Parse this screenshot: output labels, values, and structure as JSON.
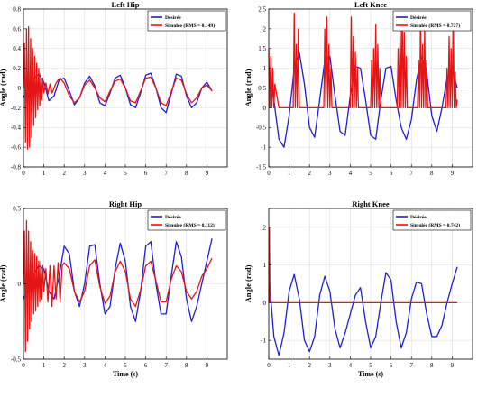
{
  "chart_data": [
    {
      "type": "line",
      "title": "Left Hip",
      "xlabel": "",
      "ylabel": "Angle (rad)",
      "xlim": [
        0,
        10
      ],
      "ylim": [
        -0.8,
        0.8
      ],
      "xticks": [
        0,
        1,
        2,
        3,
        4,
        5,
        6,
        7,
        8,
        9
      ],
      "yticks": [
        -0.8,
        -0.6,
        -0.4,
        -0.2,
        0,
        0.2,
        0.4,
        0.6,
        0.8
      ],
      "yticklabels": [
        "-0.8",
        "-0.6",
        "-0.4",
        "-0.2",
        "0",
        "0.2",
        "0.4",
        "0.6",
        "0.8"
      ],
      "grid": true,
      "legend_position": "top-right",
      "series": [
        {
          "name": "Désirée",
          "color": "#1f1fd2",
          "x": [
            0,
            0.25,
            0.5,
            0.75,
            1.0,
            1.25,
            1.5,
            1.75,
            2.0,
            2.25,
            2.5,
            2.75,
            3.0,
            3.25,
            3.5,
            3.75,
            4.0,
            4.25,
            4.5,
            4.75,
            5.0,
            5.25,
            5.5,
            5.75,
            6.0,
            6.25,
            6.5,
            6.75,
            7.0,
            7.25,
            7.5,
            7.75,
            8.0,
            8.25,
            8.5,
            8.75,
            9.0,
            9.25
          ],
          "y": [
            -0.1,
            0.0,
            0.1,
            0.14,
            0.06,
            -0.13,
            -0.08,
            0.08,
            0.1,
            -0.03,
            -0.17,
            -0.1,
            0.05,
            0.12,
            0.02,
            -0.15,
            -0.18,
            -0.05,
            0.1,
            0.13,
            0.0,
            -0.17,
            -0.2,
            -0.05,
            0.13,
            0.15,
            0.0,
            -0.2,
            -0.25,
            -0.06,
            0.14,
            0.12,
            -0.08,
            -0.2,
            -0.15,
            0.0,
            0.06,
            -0.03
          ]
        },
        {
          "name": "Simulée (RMS = 0.149)",
          "color": "#e61515",
          "x": [
            0,
            0.05,
            0.1,
            0.15,
            0.2,
            0.25,
            0.3,
            0.35,
            0.4,
            0.45,
            0.5,
            0.55,
            0.6,
            0.65,
            0.7,
            0.75,
            0.8,
            0.85,
            0.9,
            0.95,
            1.0,
            1.1,
            1.2,
            1.3,
            1.4,
            1.5,
            1.6,
            1.7,
            1.8,
            2.0,
            2.25,
            2.5,
            2.75,
            3.0,
            3.25,
            3.5,
            3.75,
            4.0,
            4.25,
            4.5,
            4.75,
            5.0,
            5.25,
            5.5,
            5.75,
            6.0,
            6.25,
            6.5,
            6.75,
            7.0,
            7.25,
            7.5,
            7.75,
            8.0,
            8.25,
            8.5,
            8.75,
            9.0,
            9.25
          ],
          "y": [
            0.0,
            0.45,
            -0.55,
            0.6,
            -0.62,
            0.62,
            -0.6,
            0.5,
            -0.5,
            0.4,
            -0.38,
            0.32,
            -0.3,
            0.25,
            -0.22,
            0.2,
            -0.18,
            0.15,
            -0.12,
            0.1,
            -0.05,
            0.05,
            -0.06,
            0.04,
            -0.05,
            0.0,
            0.05,
            0.08,
            0.1,
            0.05,
            -0.08,
            -0.15,
            -0.1,
            0.03,
            0.08,
            0.0,
            -0.1,
            -0.14,
            -0.03,
            0.07,
            0.09,
            0.0,
            -0.13,
            -0.15,
            -0.03,
            0.1,
            0.11,
            0.0,
            -0.15,
            -0.18,
            -0.04,
            0.1,
            0.08,
            -0.06,
            -0.15,
            -0.1,
            0.0,
            0.03,
            -0.03
          ]
        }
      ]
    },
    {
      "type": "line",
      "title": "Left Knee",
      "xlabel": "",
      "ylabel": "Angle (rad)",
      "xlim": [
        0,
        10
      ],
      "ylim": [
        -1.5,
        2.5
      ],
      "xticks": [
        0,
        1,
        2,
        3,
        4,
        5,
        6,
        7,
        8,
        9
      ],
      "yticks": [
        -1.5,
        -1,
        -0.5,
        0,
        0.5,
        1,
        1.5,
        2,
        2.5
      ],
      "yticklabels": [
        "-1.5",
        "-1",
        "-0.5",
        "0",
        "0.5",
        "1",
        "1.5",
        "2",
        "2.5"
      ],
      "grid": true,
      "legend_position": "top-right",
      "series": [
        {
          "name": "Désirée",
          "color": "#1f1fd2",
          "x": [
            0,
            0.25,
            0.5,
            0.75,
            1.0,
            1.25,
            1.5,
            1.75,
            2.0,
            2.25,
            2.5,
            2.75,
            3.0,
            3.25,
            3.5,
            3.75,
            4.0,
            4.25,
            4.5,
            4.75,
            5.0,
            5.25,
            5.5,
            5.75,
            6.0,
            6.25,
            6.5,
            6.75,
            7.0,
            7.25,
            7.5,
            7.75,
            8.0,
            8.25,
            8.5,
            8.75,
            9.0,
            9.25
          ],
          "y": [
            1.0,
            0.2,
            -0.8,
            -1.0,
            -0.2,
            1.0,
            1.4,
            0.6,
            -0.5,
            -0.75,
            0.2,
            1.2,
            1.3,
            0.3,
            -0.6,
            -0.7,
            0.3,
            1.05,
            1.0,
            0.2,
            -0.7,
            -0.8,
            0.2,
            1.0,
            1.05,
            0.2,
            -0.5,
            -0.8,
            -0.3,
            0.7,
            1.3,
            0.9,
            -0.2,
            -0.6,
            0.0,
            0.75,
            1.0,
            0.5
          ]
        },
        {
          "name": "Simulée (RMS = 0.727)",
          "color": "#e61515",
          "x": [
            0.0,
            0.05,
            0.1,
            0.15,
            0.2,
            0.25,
            0.3,
            0.5,
            1.2,
            1.25,
            1.3,
            1.35,
            1.4,
            1.45,
            1.5,
            2.5,
            2.7,
            2.75,
            2.8,
            2.85,
            2.9,
            2.95,
            3.0,
            3.05,
            3.1,
            4.0,
            4.05,
            4.1,
            4.15,
            4.2,
            4.25,
            4.3,
            4.35,
            4.4,
            5.0,
            5.05,
            5.1,
            5.15,
            5.2,
            5.25,
            5.3,
            5.35,
            5.4,
            5.45,
            5.5,
            6.3,
            6.35,
            6.4,
            6.45,
            6.5,
            6.55,
            6.6,
            6.65,
            6.7,
            6.75,
            6.8,
            7.3,
            7.35,
            7.4,
            7.45,
            7.5,
            7.55,
            7.6,
            7.65,
            7.7,
            7.75,
            7.8,
            8.7,
            8.75,
            8.8,
            8.85,
            8.9,
            8.95,
            9.0,
            9.05,
            9.1,
            9.15,
            9.2,
            9.25
          ],
          "y": [
            1.5,
            0.0,
            1.3,
            0.0,
            1.0,
            0.0,
            0.6,
            0.0,
            0.0,
            2.4,
            0.0,
            1.6,
            0.0,
            2.0,
            0.0,
            0.0,
            0.0,
            2.0,
            0.0,
            2.3,
            0.0,
            1.6,
            0.0,
            1.0,
            0.0,
            0.0,
            2.3,
            0.0,
            1.8,
            0.0,
            1.4,
            0.0,
            1.0,
            0.0,
            0.0,
            1.2,
            0.0,
            1.5,
            0.0,
            2.1,
            0.0,
            1.6,
            0.0,
            1.0,
            0.0,
            0.0,
            1.5,
            0.0,
            2.1,
            0.0,
            2.4,
            0.0,
            1.9,
            0.0,
            1.3,
            0.0,
            0.0,
            1.2,
            0.0,
            2.3,
            0.0,
            1.6,
            0.0,
            2.0,
            0.0,
            1.2,
            0.0,
            0.0,
            1.0,
            0.0,
            1.8,
            0.0,
            1.5,
            0.0,
            2.3,
            0.0,
            0.9,
            0.0,
            0.2
          ]
        }
      ]
    },
    {
      "type": "line",
      "title": "Right Hip",
      "xlabel": "Time (s)",
      "ylabel": "Angle (rad)",
      "xlim": [
        0,
        10
      ],
      "ylim": [
        -0.5,
        0.5
      ],
      "xticks": [
        0,
        1,
        2,
        3,
        4,
        5,
        6,
        7,
        8,
        9
      ],
      "yticks": [
        -0.5,
        0,
        0.5
      ],
      "yticklabels": [
        "-0.5",
        "0",
        "0.5"
      ],
      "grid": true,
      "legend_position": "top-right",
      "series": [
        {
          "name": "Désirée",
          "color": "#1f1fd2",
          "x": [
            0,
            0.25,
            0.5,
            0.75,
            1.0,
            1.25,
            1.5,
            1.75,
            2.0,
            2.25,
            2.5,
            2.75,
            3.0,
            3.25,
            3.5,
            3.75,
            4.0,
            4.25,
            4.5,
            4.75,
            5.0,
            5.25,
            5.5,
            5.75,
            6.0,
            6.25,
            6.5,
            6.75,
            7.0,
            7.25,
            7.5,
            7.75,
            8.0,
            8.25,
            8.5,
            8.75,
            9.0,
            9.25
          ],
          "y": [
            -0.1,
            -0.02,
            0.06,
            0.12,
            0.1,
            -0.05,
            -0.1,
            0.05,
            0.25,
            0.2,
            -0.05,
            -0.15,
            0.0,
            0.25,
            0.26,
            0.0,
            -0.2,
            -0.15,
            0.1,
            0.27,
            0.15,
            -0.15,
            -0.25,
            -0.05,
            0.25,
            0.28,
            0.0,
            -0.2,
            -0.2,
            0.05,
            0.28,
            0.18,
            -0.1,
            -0.25,
            -0.15,
            0.0,
            0.15,
            0.3
          ]
        },
        {
          "name": "Simulée (RMS = 0.112)",
          "color": "#e61515",
          "x": [
            0,
            0.05,
            0.1,
            0.15,
            0.2,
            0.25,
            0.3,
            0.35,
            0.4,
            0.45,
            0.5,
            0.55,
            0.6,
            0.65,
            0.7,
            0.75,
            0.8,
            0.85,
            0.9,
            0.95,
            1.0,
            1.1,
            1.2,
            1.3,
            1.4,
            1.5,
            1.6,
            1.7,
            1.8,
            1.9,
            2.0,
            2.25,
            2.5,
            2.75,
            3.0,
            3.25,
            3.5,
            3.75,
            4.0,
            4.25,
            4.5,
            4.75,
            5.0,
            5.25,
            5.5,
            5.75,
            6.0,
            6.25,
            6.5,
            6.75,
            7.0,
            7.25,
            7.5,
            7.75,
            8.0,
            8.25,
            8.5,
            8.75,
            9.0,
            9.25
          ],
          "y": [
            0.0,
            0.35,
            -0.45,
            0.42,
            -0.38,
            0.35,
            -0.3,
            0.28,
            -0.25,
            0.22,
            -0.2,
            0.2,
            -0.18,
            0.18,
            -0.15,
            0.15,
            -0.12,
            0.15,
            -0.1,
            0.12,
            -0.05,
            0.1,
            -0.12,
            0.12,
            -0.15,
            0.12,
            -0.1,
            0.14,
            -0.12,
            0.12,
            0.14,
            0.1,
            -0.05,
            -0.12,
            -0.05,
            0.12,
            0.16,
            -0.02,
            -0.13,
            -0.08,
            0.08,
            0.15,
            0.08,
            -0.1,
            -0.15,
            -0.04,
            0.12,
            0.15,
            0.02,
            -0.12,
            -0.12,
            0.03,
            0.12,
            0.08,
            -0.05,
            -0.1,
            -0.05,
            0.05,
            0.1,
            0.17
          ]
        }
      ]
    },
    {
      "type": "line",
      "title": "Right Knee",
      "xlabel": "Time (s)",
      "ylabel": "Angle (rad)",
      "xlim": [
        0,
        10
      ],
      "ylim": [
        -1.5,
        2.5
      ],
      "xticks": [
        0,
        1,
        2,
        3,
        4,
        5,
        6,
        7,
        8,
        9
      ],
      "yticks": [
        -1,
        0,
        1,
        2
      ],
      "yticklabels": [
        "-1",
        "0",
        "1",
        "2"
      ],
      "grid": true,
      "legend_position": "top-right",
      "series": [
        {
          "name": "Désirée",
          "color": "#1f1fd2",
          "x": [
            0,
            0.25,
            0.5,
            0.75,
            1.0,
            1.25,
            1.5,
            1.75,
            2.0,
            2.25,
            2.5,
            2.75,
            3.0,
            3.25,
            3.5,
            3.75,
            4.0,
            4.25,
            4.5,
            4.75,
            5.0,
            5.25,
            5.5,
            5.75,
            6.0,
            6.25,
            6.5,
            6.75,
            7.0,
            7.25,
            7.5,
            7.75,
            8.0,
            8.25,
            8.5,
            8.75,
            9.0,
            9.25
          ],
          "y": [
            0.8,
            -0.9,
            -1.4,
            -0.8,
            0.3,
            0.75,
            0.1,
            -1.0,
            -1.3,
            -0.9,
            0.2,
            0.7,
            0.3,
            -0.7,
            -1.2,
            -0.8,
            -0.3,
            0.2,
            0.4,
            -0.5,
            -1.2,
            -0.9,
            0.0,
            0.8,
            0.6,
            -0.5,
            -1.2,
            -0.8,
            0.1,
            0.55,
            0.5,
            -0.3,
            -0.9,
            -0.9,
            -0.6,
            0.0,
            0.5,
            0.95
          ]
        },
        {
          "name": "Simulée (RMS = 0.742)",
          "color": "#e61515",
          "x": [
            0,
            0.03,
            0.06,
            0.1,
            9.25
          ],
          "y": [
            0.0,
            2.0,
            0.0,
            0.0,
            0.0
          ]
        }
      ]
    }
  ]
}
